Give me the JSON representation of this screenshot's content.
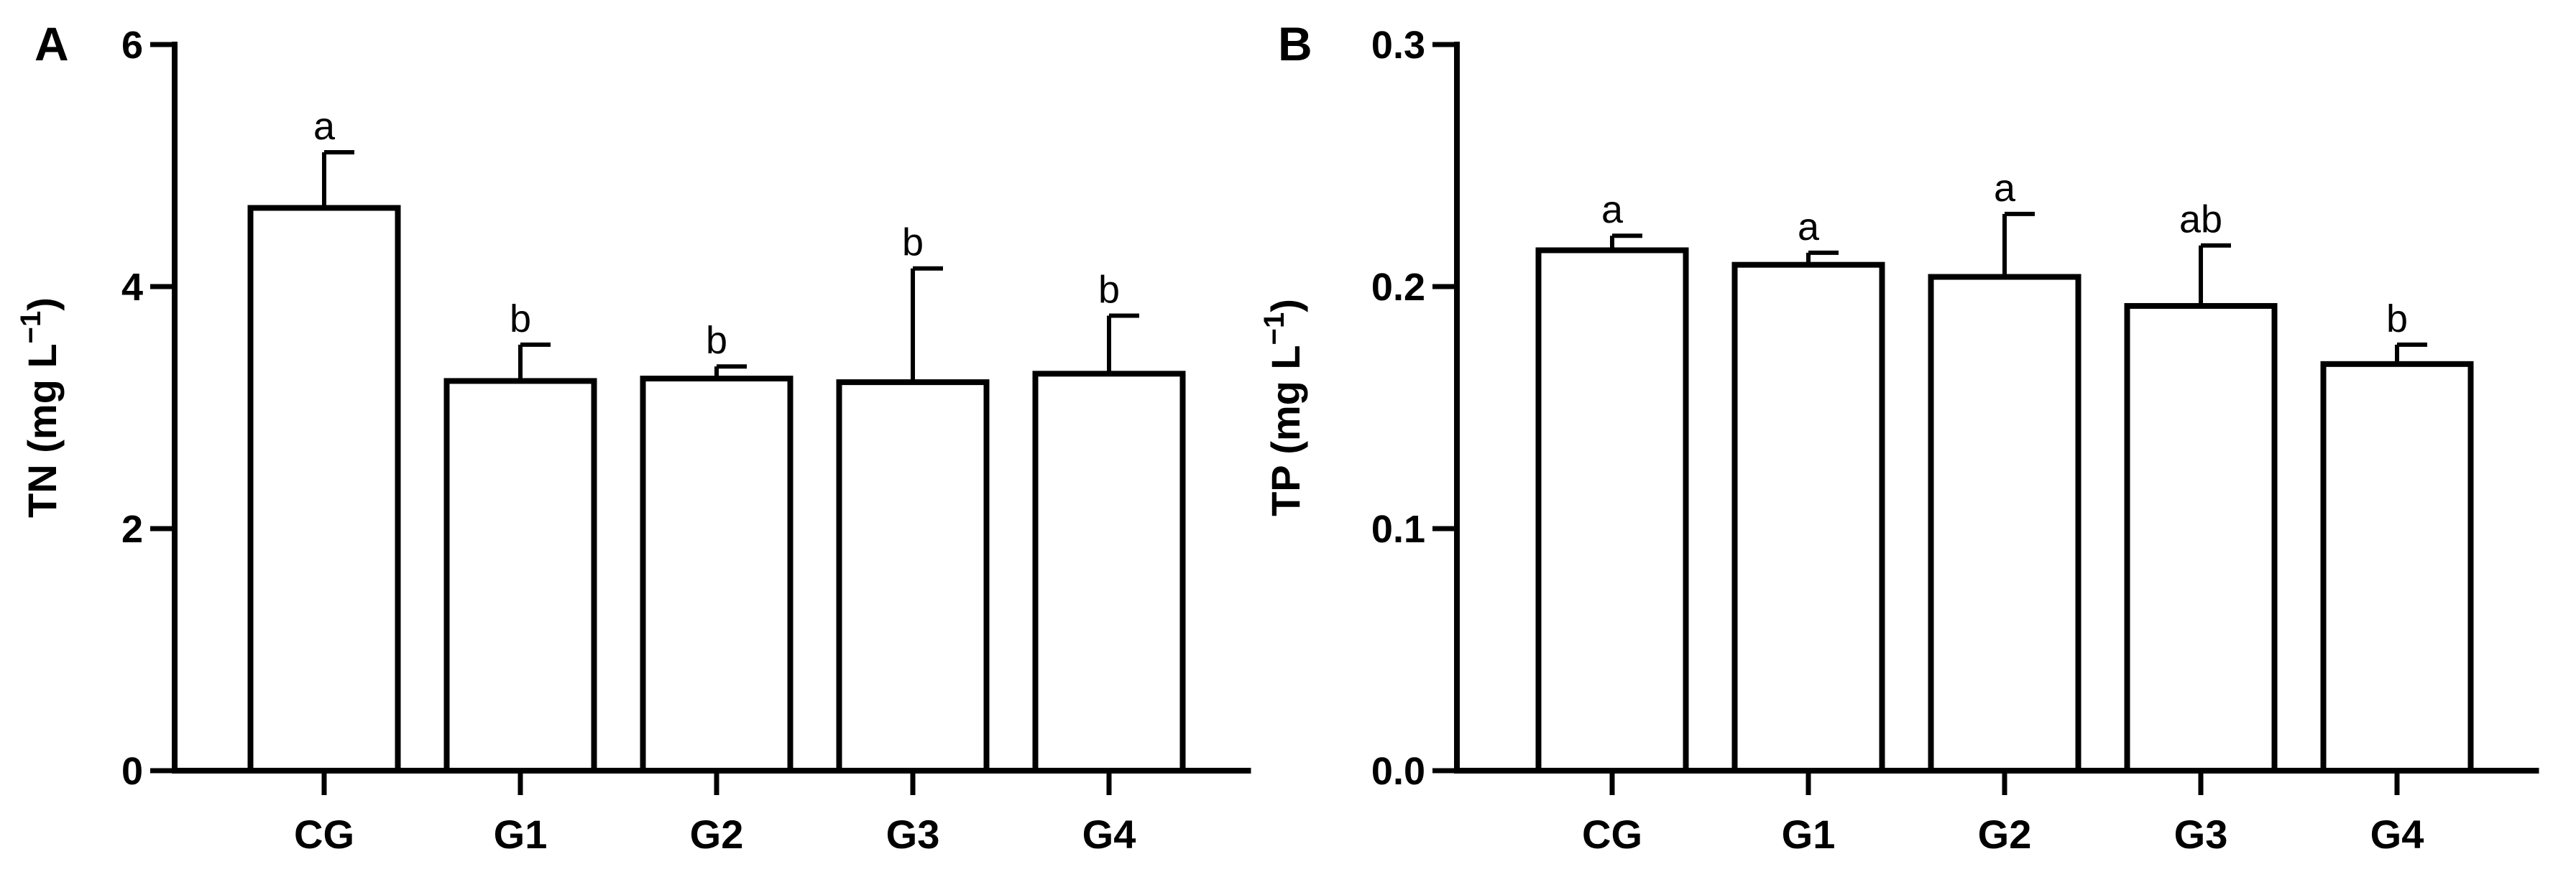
{
  "chart_data": [
    {
      "type": "bar",
      "panel": "A",
      "ylabel_main": "TN (mg L",
      "ylabel_sup": "−1",
      "ylabel_end": ")",
      "ylim": [
        0,
        6
      ],
      "yticks": [
        "0",
        "2",
        "4",
        "6"
      ],
      "tick_values": [
        0,
        2,
        4,
        6
      ],
      "categories": [
        "CG",
        "G1",
        "G2",
        "G3",
        "G4"
      ],
      "values": [
        4.65,
        3.22,
        3.24,
        3.21,
        3.28
      ],
      "errors": [
        0.46,
        0.3,
        0.1,
        0.94,
        0.48
      ],
      "significance": [
        "a",
        "b",
        "b",
        "b",
        "b"
      ],
      "grid": false,
      "legend": "none",
      "bar_fill": "#ffffff",
      "bar_stroke": "#000000"
    },
    {
      "type": "bar",
      "panel": "B",
      "ylabel_main": "TP (mg L",
      "ylabel_sup": "−1",
      "ylabel_end": ")",
      "ylim": [
        0.0,
        0.3
      ],
      "yticks": [
        "0.0",
        "0.1",
        "0.2",
        "0.3"
      ],
      "tick_values": [
        0.0,
        0.1,
        0.2,
        0.3
      ],
      "categories": [
        "CG",
        "G1",
        "G2",
        "G3",
        "G4"
      ],
      "values": [
        0.215,
        0.209,
        0.204,
        0.192,
        0.168
      ],
      "errors": [
        0.006,
        0.005,
        0.026,
        0.025,
        0.008
      ],
      "significance": [
        "a",
        "a",
        "a",
        "ab",
        "b"
      ],
      "grid": false,
      "legend": "none",
      "bar_fill": "#ffffff",
      "bar_stroke": "#000000"
    }
  ]
}
